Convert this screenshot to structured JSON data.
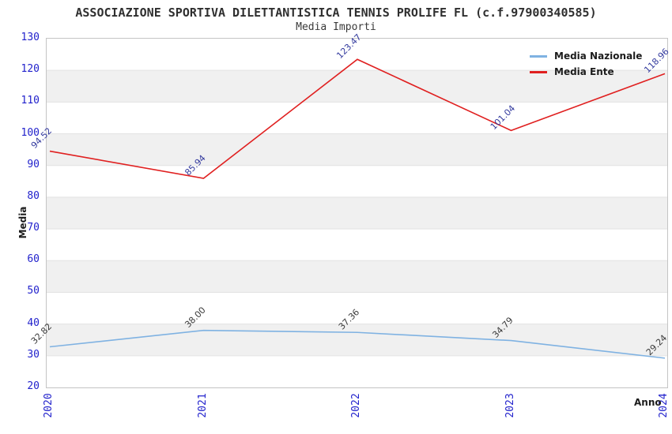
{
  "chart_data": {
    "type": "line",
    "title": "ASSOCIAZIONE SPORTIVA DILETTANTISTICA TENNIS PROLIFE FL (c.f.97900340585)",
    "subtitle": "Media Importi",
    "xlabel": "Anno",
    "ylabel": "Media",
    "categories": [
      "2020",
      "2021",
      "2022",
      "2023",
      "2024"
    ],
    "ylim": [
      20,
      130
    ],
    "ytick_step": 10,
    "yticks": [
      20,
      30,
      40,
      50,
      60,
      70,
      80,
      90,
      100,
      110,
      120,
      130
    ],
    "grid": "horizontal-bands-alternating",
    "legend_position": "top-right",
    "axis_tick_color": "#2222cc",
    "band_color": "#f0f0f0",
    "grid_color": "#e2e2e2",
    "series": [
      {
        "name": "Media Nazionale",
        "color": "#7fb2e2",
        "label_color": "#3a3a3a",
        "values": [
          32.82,
          38.0,
          37.36,
          34.79,
          29.24
        ],
        "labels": [
          "32.82",
          "38.00",
          "37.36",
          "34.79",
          "29.24"
        ]
      },
      {
        "name": "Media Ente",
        "color": "#e02020",
        "label_color": "#333a9e",
        "values": [
          94.52,
          85.94,
          123.47,
          101.04,
          118.96
        ],
        "labels": [
          "94.52",
          "85.94",
          "123.47",
          "101.04",
          "118.96"
        ]
      }
    ]
  }
}
